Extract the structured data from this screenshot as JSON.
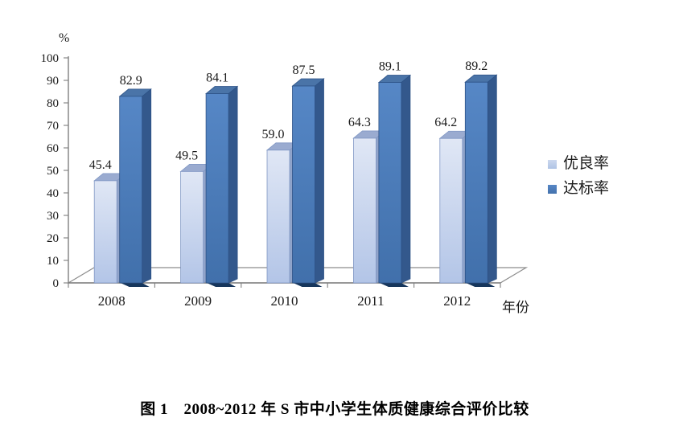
{
  "figure": {
    "caption": "图 1　2008~2012 年 S 市中小学生体质健康综合评价比较"
  },
  "chart_data": {
    "type": "bar",
    "style": "3d-clustered-column",
    "title": "",
    "categories": [
      "2008",
      "2009",
      "2010",
      "2011",
      "2012"
    ],
    "series": [
      {
        "name": "优良率",
        "values": [
          45.4,
          49.5,
          59.0,
          64.3,
          64.2
        ],
        "value_labels": [
          "45.4",
          "49.5",
          "59.0",
          "64.3",
          "64.2"
        ],
        "color": "#b8cce4"
      },
      {
        "name": "达标率",
        "values": [
          82.9,
          84.1,
          87.5,
          89.1,
          89.2
        ],
        "value_labels": [
          "82.9",
          "84.1",
          "87.5",
          "89.1",
          "89.2"
        ],
        "color": "#4f81bd"
      }
    ],
    "ylabel": "%",
    "xlabel": "年份",
    "ylim": [
      0,
      100
    ],
    "yticks": [
      0,
      10,
      20,
      30,
      40,
      50,
      60,
      70,
      80,
      90,
      100
    ],
    "grid": false,
    "legend_position": "right",
    "colors": {
      "light_series": "#b8cce4",
      "dark_series": "#4f81bd",
      "axis": "#7f7f7f",
      "label_text": "#1a1a1a"
    }
  }
}
